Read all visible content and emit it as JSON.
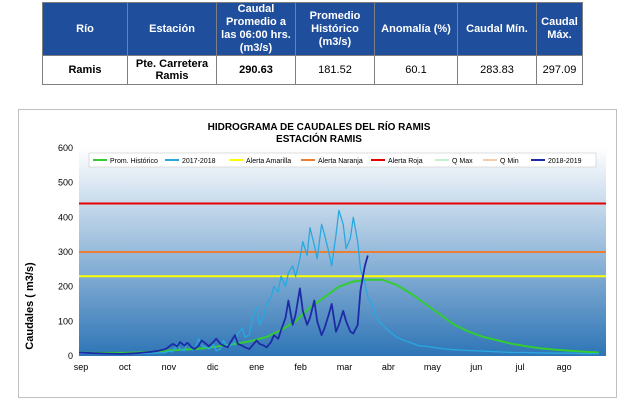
{
  "table": {
    "headers": [
      "Río",
      "Estación",
      "Caudal Promedio a las 06:00 hrs. (m3/s)",
      "Promedio Histórico (m3/s)",
      "Anomalía (%)",
      "Caudal Mín.",
      "Caudal Máx."
    ],
    "row": [
      "Ramis",
      "Pte. Carretera Ramis",
      "290.63",
      "181.52",
      "60.1",
      "283.83",
      "297.09"
    ]
  },
  "chart_data": {
    "type": "line",
    "title": "HIDROGRAMA DE CAUDALES DEL RÍO RAMIS",
    "subtitle": "ESTACIÓN RAMIS",
    "ylabel": "Caudales ( m3/s)",
    "xlabel": "",
    "ylim": [
      0,
      600
    ],
    "yticks": [
      "0",
      "100",
      "200",
      "300",
      "400",
      "500",
      "600"
    ],
    "x_tick_labels": [
      "sep",
      "oct",
      "nov",
      "dic",
      "ene",
      "feb",
      "mar",
      "abr",
      "may",
      "jun",
      "jul",
      "ago"
    ],
    "grid": false,
    "legend_position": "top",
    "colors": {
      "prom_historico": "#33cc33",
      "y2017_2018": "#29a8e0",
      "alerta_amarilla": "#ffff00",
      "alerta_naranja": "#ed7d31",
      "alerta_roja": "#e60000",
      "q_max": "#c6efce",
      "q_min": "#f8cbad",
      "y2018_2019": "#1f2aa6",
      "plot_bg_top": "#ffffff",
      "plot_bg_bottom": "#2e75b6"
    },
    "legend": [
      "Prom. Histórico",
      "2017-2018",
      "Alerta Amarilla",
      "Alerta Naranja",
      "Alerta Roja",
      "Q Max",
      "Q Min",
      "2018-2019"
    ],
    "alert_levels": {
      "alerta_amarilla": 230,
      "alerta_naranja": 300,
      "alerta_roja": 440
    },
    "series": [
      {
        "name": "Prom. Histórico",
        "x": [
          0,
          10,
          20,
          30,
          40,
          50,
          60,
          70,
          80,
          90,
          100,
          110,
          120,
          130,
          140,
          150,
          160,
          170,
          180,
          190,
          200,
          210,
          220,
          230,
          240,
          250,
          260,
          270,
          280,
          290,
          300,
          310,
          320,
          330,
          340,
          350,
          360
        ],
        "values": [
          10,
          9,
          9,
          9,
          10,
          12,
          15,
          18,
          20,
          24,
          30,
          36,
          44,
          55,
          75,
          100,
          140,
          170,
          200,
          215,
          220,
          220,
          205,
          180,
          150,
          120,
          90,
          70,
          55,
          45,
          35,
          28,
          22,
          18,
          15,
          12,
          10
        ]
      },
      {
        "name": "2017-2018",
        "x": [
          0,
          10,
          20,
          30,
          40,
          50,
          60,
          62,
          65,
          68,
          70,
          73,
          75,
          78,
          80,
          83,
          85,
          88,
          90,
          93,
          95,
          98,
          100,
          103,
          105,
          108,
          110,
          113,
          115,
          118,
          120,
          123,
          125,
          128,
          130,
          133,
          135,
          138,
          140,
          143,
          145,
          148,
          150,
          153,
          155,
          158,
          160,
          163,
          165,
          168,
          170,
          173,
          175,
          178,
          180,
          183,
          185,
          188,
          190,
          193,
          195,
          198,
          200,
          203,
          205,
          208,
          210,
          215,
          220,
          225,
          230,
          235,
          240,
          245,
          250,
          255,
          260,
          270,
          280,
          290,
          300,
          310,
          320,
          330,
          340,
          350,
          360
        ],
        "values": [
          8,
          7,
          6,
          6,
          7,
          8,
          10,
          14,
          12,
          35,
          20,
          15,
          40,
          22,
          18,
          50,
          30,
          25,
          20,
          35,
          15,
          20,
          45,
          25,
          30,
          40,
          65,
          80,
          55,
          60,
          110,
          140,
          90,
          120,
          150,
          170,
          200,
          185,
          230,
          200,
          240,
          260,
          230,
          280,
          330,
          290,
          370,
          320,
          280,
          380,
          350,
          300,
          260,
          350,
          420,
          380,
          310,
          340,
          400,
          330,
          250,
          210,
          170,
          150,
          120,
          100,
          90,
          70,
          55,
          45,
          38,
          30,
          28,
          25,
          22,
          20,
          18,
          16,
          14,
          12,
          10,
          10,
          9,
          8,
          8,
          7,
          7
        ]
      },
      {
        "name": "2018-2019",
        "x": [
          0,
          10,
          20,
          30,
          40,
          45,
          50,
          55,
          60,
          65,
          68,
          70,
          73,
          75,
          78,
          80,
          83,
          85,
          88,
          90,
          93,
          95,
          98,
          100,
          103,
          105,
          108,
          110,
          113,
          115,
          118,
          120,
          123,
          125,
          128,
          130,
          133,
          135,
          138,
          140,
          143,
          145,
          148,
          150,
          153,
          155,
          158,
          160,
          163,
          165,
          168,
          170,
          173,
          175,
          178,
          180,
          183,
          185,
          188,
          190,
          193,
          195,
          198,
          200
        ],
        "values": [
          10,
          8,
          7,
          6,
          8,
          10,
          12,
          15,
          20,
          35,
          28,
          40,
          30,
          38,
          25,
          20,
          30,
          45,
          35,
          28,
          40,
          50,
          35,
          30,
          25,
          40,
          60,
          35,
          30,
          25,
          20,
          30,
          45,
          35,
          30,
          25,
          40,
          60,
          50,
          75,
          110,
          160,
          90,
          120,
          195,
          130,
          90,
          110,
          160,
          100,
          60,
          80,
          120,
          150,
          70,
          90,
          130,
          100,
          70,
          65,
          90,
          190,
          260,
          290
        ]
      }
    ]
  }
}
